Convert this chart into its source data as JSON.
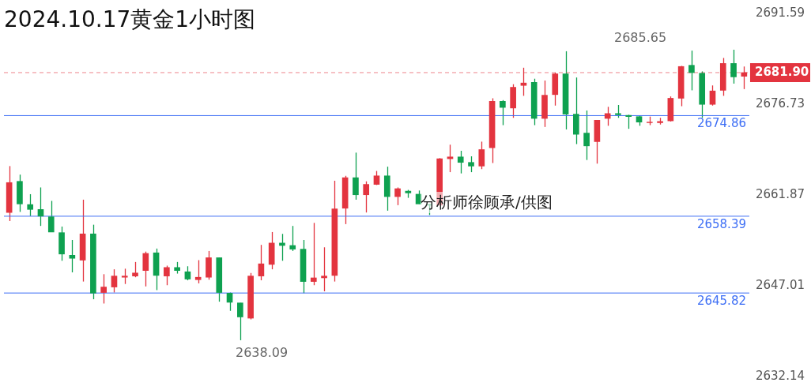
{
  "chart_data": {
    "type": "candlestick",
    "title": "2024.10.17黄金1小时图",
    "annotations": [
      "2685.65",
      "2638.09",
      "分析师徐顾承/供图"
    ],
    "categories": [
      null,
      null,
      null,
      null,
      null,
      null,
      null,
      null,
      null,
      null,
      null,
      null,
      null,
      null,
      null,
      null,
      null,
      null,
      null,
      null,
      null,
      null,
      null,
      null,
      null,
      null,
      null,
      null,
      null,
      null,
      null,
      null,
      null,
      null,
      null,
      null,
      null,
      null,
      null,
      null,
      null,
      null,
      null,
      null,
      null,
      null,
      null,
      null,
      null,
      null,
      null,
      null,
      null,
      null,
      null,
      null,
      null,
      null,
      null,
      null,
      null,
      null,
      null,
      null,
      null,
      null,
      null,
      null,
      null,
      null,
      null
    ],
    "ohlc": [
      [
        2659.0,
        2666.6,
        2657.6,
        2663.9
      ],
      [
        2664.1,
        2665.2,
        2659.1,
        2660.4
      ],
      [
        2660.3,
        2662.0,
        2658.4,
        2659.5
      ],
      [
        2659.5,
        2663.1,
        2656.8,
        2658.4
      ],
      [
        2658.3,
        2660.9,
        2655.8,
        2655.8
      ],
      [
        2655.7,
        2656.7,
        2651.1,
        2652.2
      ],
      [
        2652.0,
        2654.5,
        2649.2,
        2651.5
      ],
      [
        2651.2,
        2661.1,
        2647.7,
        2655.5
      ],
      [
        2655.5,
        2657.0,
        2644.8,
        2645.8
      ],
      [
        2645.9,
        2648.9,
        2644.1,
        2646.8
      ],
      [
        2646.8,
        2649.7,
        2645.9,
        2648.6
      ],
      [
        2648.4,
        2649.8,
        2647.3,
        2648.6
      ],
      [
        2648.6,
        2650.9,
        2648.4,
        2649.1
      ],
      [
        2649.5,
        2652.6,
        2646.9,
        2652.3
      ],
      [
        2652.4,
        2653.1,
        2646.3,
        2648.7
      ],
      [
        2648.6,
        2650.3,
        2647.1,
        2650.0
      ],
      [
        2650.0,
        2650.9,
        2649.0,
        2649.5
      ],
      [
        2649.3,
        2650.2,
        2647.9,
        2648.1
      ],
      [
        2648.0,
        2651.2,
        2647.4,
        2648.4
      ],
      [
        2648.4,
        2652.7,
        2648.0,
        2651.6
      ],
      [
        2651.6,
        2651.6,
        2644.4,
        2645.9
      ],
      [
        2645.8,
        2645.9,
        2642.9,
        2644.3
      ],
      [
        2644.2,
        2644.2,
        2638.09,
        2641.9
      ],
      [
        2641.7,
        2649.1,
        2641.5,
        2648.6
      ],
      [
        2648.6,
        2653.7,
        2647.9,
        2650.6
      ],
      [
        2650.5,
        2655.8,
        2649.7,
        2654.0
      ],
      [
        2654.0,
        2655.5,
        2651.1,
        2653.6
      ],
      [
        2653.6,
        2656.8,
        2652.7,
        2653.0
      ],
      [
        2653.0,
        2654.5,
        2645.8,
        2647.7
      ],
      [
        2647.7,
        2657.3,
        2647.1,
        2648.3
      ],
      [
        2648.3,
        2653.3,
        2646.1,
        2648.6
      ],
      [
        2648.7,
        2664.2,
        2647.7,
        2659.6
      ],
      [
        2659.7,
        2665.0,
        2657.1,
        2664.7
      ],
      [
        2664.7,
        2668.8,
        2661.1,
        2661.9
      ],
      [
        2661.9,
        2664.1,
        2659.0,
        2663.6
      ],
      [
        2663.6,
        2665.8,
        2663.5,
        2665.0
      ],
      [
        2665.0,
        2666.5,
        2659.3,
        2661.6
      ],
      [
        2661.6,
        2663.1,
        2660.2,
        2662.9
      ],
      [
        2662.5,
        2662.7,
        2661.4,
        2662.2
      ],
      [
        2662.0,
        2662.6,
        2660.4,
        2660.4
      ],
      [
        2660.3,
        2660.4,
        2658.6,
        2660.2
      ],
      [
        2660.2,
        2667.9,
        2660.2,
        2667.8
      ],
      [
        2667.8,
        2670.1,
        2665.6,
        2668.1
      ],
      [
        2668.1,
        2669.1,
        2665.4,
        2667.2
      ],
      [
        2667.2,
        2668.2,
        2665.6,
        2666.6
      ],
      [
        2666.6,
        2670.6,
        2666.1,
        2669.3
      ],
      [
        2669.6,
        2677.7,
        2667.1,
        2677.2
      ],
      [
        2677.2,
        2677.4,
        2673.3,
        2676.2
      ],
      [
        2676.1,
        2680.0,
        2674.5,
        2679.5
      ],
      [
        2679.8,
        2682.7,
        2678.1,
        2680.2
      ],
      [
        2680.3,
        2680.9,
        2673.3,
        2674.4
      ],
      [
        2674.4,
        2680.6,
        2673.0,
        2678.2
      ],
      [
        2678.3,
        2681.9,
        2676.5,
        2681.7
      ],
      [
        2681.7,
        2685.4,
        2672.6,
        2675.1
      ],
      [
        2675.1,
        2681.1,
        2670.2,
        2671.8
      ],
      [
        2672.0,
        2675.7,
        2667.6,
        2669.9
      ],
      [
        2670.6,
        2674.1,
        2667.0,
        2674.1
      ],
      [
        2674.4,
        2676.3,
        2673.2,
        2675.2
      ],
      [
        2675.2,
        2676.6,
        2674.5,
        2675.0
      ],
      [
        2674.9,
        2675.0,
        2672.7,
        2674.7
      ],
      [
        2674.7,
        2674.9,
        2673.2,
        2673.8
      ],
      [
        2673.7,
        2674.7,
        2673.3,
        2673.8
      ],
      [
        2673.7,
        2674.5,
        2673.4,
        2673.9
      ],
      [
        2674.0,
        2678.0,
        2673.9,
        2677.7
      ],
      [
        2677.7,
        2683.0,
        2676.4,
        2682.9
      ],
      [
        2683.1,
        2685.5,
        2679.0,
        2681.9
      ],
      [
        2681.8,
        2682.1,
        2674.5,
        2676.7
      ],
      [
        2676.7,
        2679.8,
        2676.5,
        2678.9
      ],
      [
        2679.0,
        2684.3,
        2678.1,
        2683.4
      ],
      [
        2683.4,
        2685.65,
        2680.1,
        2681.2
      ],
      [
        2681.3,
        2682.9,
        2679.2,
        2681.9
      ]
    ],
    "colors": [
      "#e3343f",
      "#0ea150",
      "#0ea150",
      "#0ea150",
      "#0ea150",
      "#0ea150",
      "#0ea150",
      "#e3343f",
      "#0ea150",
      "#e3343f",
      "#e3343f",
      "#e3343f",
      "#e3343f",
      "#e3343f",
      "#0ea150",
      "#e3343f",
      "#0ea150",
      "#0ea150",
      "#e3343f",
      "#e3343f",
      "#0ea150",
      "#0ea150",
      "#0ea150",
      "#e3343f",
      "#e3343f",
      "#e3343f",
      "#0ea150",
      "#0ea150",
      "#0ea150",
      "#e3343f",
      "#e3343f",
      "#e3343f",
      "#e3343f",
      "#0ea150",
      "#e3343f",
      "#e3343f",
      "#0ea150",
      "#e3343f",
      "#0ea150",
      "#0ea150",
      "#0ea150",
      "#e3343f",
      "#e3343f",
      "#0ea150",
      "#0ea150",
      "#e3343f",
      "#e3343f",
      "#0ea150",
      "#e3343f",
      "#e3343f",
      "#0ea150",
      "#e3343f",
      "#e3343f",
      "#0ea150",
      "#0ea150",
      "#0ea150",
      "#e3343f",
      "#e3343f",
      "#0ea150",
      "#0ea150",
      "#0ea150",
      "#e3343f",
      "#e3343f",
      "#e3343f",
      "#e3343f",
      "#0ea150",
      "#0ea150",
      "#e3343f",
      "#e3343f",
      "#0ea150",
      "#e3343f"
    ],
    "ylim": [
      2632.14,
      2691.59
    ],
    "yticks": [
      2632.14,
      2647.01,
      2661.87,
      2676.73,
      2691.59
    ],
    "tick_labels": "y",
    "ref_lines": [
      {
        "axis": "y",
        "value": 2674.86,
        "label": "2674.86",
        "color": "#3d6ef5",
        "line_style": "solid"
      },
      {
        "axis": "y",
        "value": 2658.39,
        "label": "2658.39",
        "color": "#3d6ef5",
        "line_style": "solid"
      },
      {
        "axis": "y",
        "value": 2645.82,
        "label": "2645.82",
        "color": "#3d6ef5",
        "line_style": "solid"
      },
      {
        "axis": "y",
        "value": 2681.9,
        "label": "2681.90",
        "color": "#e3343f",
        "line_style": "dashed"
      }
    ]
  }
}
